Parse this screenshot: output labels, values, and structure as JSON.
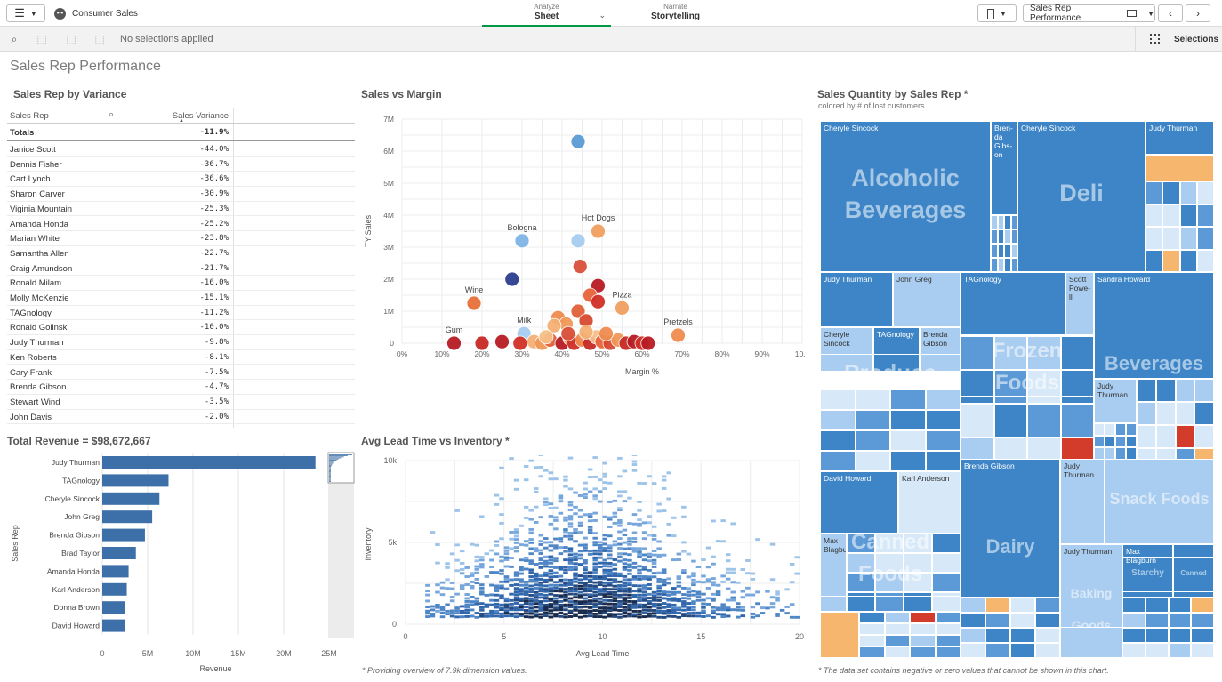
{
  "app": {
    "title": "Consumer Sales"
  },
  "nav": {
    "tabs": [
      {
        "sub": "Analyze",
        "label": "Sheet"
      },
      {
        "sub": "Narrate",
        "label": "Storytelling"
      }
    ],
    "sheet_selector": "Sales Rep Performance",
    "selections_label": "Selections"
  },
  "selbar": {
    "status": "No selections applied"
  },
  "sheet": {
    "title": "Sales Rep Performance"
  },
  "panels": {
    "variance": {
      "title": "Sales Rep by Variance",
      "col1": "Sales Rep",
      "col2": "Sales Variance",
      "totals_label": "Totals",
      "totals_value": "-11.9%",
      "rows": [
        {
          "name": "Janice Scott",
          "value": "-44.0%"
        },
        {
          "name": "Dennis Fisher",
          "value": "-36.7%"
        },
        {
          "name": "Cart Lynch",
          "value": "-36.6%"
        },
        {
          "name": "Sharon Carver",
          "value": "-30.9%"
        },
        {
          "name": "Viginia Mountain",
          "value": "-25.3%"
        },
        {
          "name": "Amanda Honda",
          "value": "-25.2%"
        },
        {
          "name": "Marian White",
          "value": "-23.8%"
        },
        {
          "name": "Samantha Allen",
          "value": "-22.7%"
        },
        {
          "name": "Craig Amundson",
          "value": "-21.7%"
        },
        {
          "name": "Ronald Milam",
          "value": "-16.0%"
        },
        {
          "name": "Molly McKenzie",
          "value": "-15.1%"
        },
        {
          "name": "TAGnology",
          "value": "-11.2%"
        },
        {
          "name": "Ronald Golinski",
          "value": "-10.0%"
        },
        {
          "name": "Judy Thurman",
          "value": "-9.8%"
        },
        {
          "name": "Ken Roberts",
          "value": "-8.1%"
        },
        {
          "name": "Cary Frank",
          "value": "-7.5%"
        },
        {
          "name": "Brenda Gibson",
          "value": "-4.7%"
        },
        {
          "name": "Stewart Wind",
          "value": "-3.5%"
        },
        {
          "name": "John Davis",
          "value": "-2.0%"
        }
      ]
    },
    "scatter": {
      "title": "Sales vs Margin",
      "xlabel": "Margin %",
      "ylabel": "TY Sales",
      "xticks": [
        "0%",
        "10%",
        "20%",
        "30%",
        "40%",
        "50%",
        "60%",
        "70%",
        "80%",
        "90%",
        "10..."
      ],
      "yticks": [
        "0",
        "1M",
        "2M",
        "3M",
        "4M",
        "5M",
        "6M",
        "7M"
      ],
      "labeled_points": [
        {
          "label": "Bologna",
          "x": 30,
          "y": 3.2
        },
        {
          "label": "Hot Dogs",
          "x": 49,
          "y": 3.5
        },
        {
          "label": "Wine",
          "x": 18,
          "y": 1.25
        },
        {
          "label": "Pizza",
          "x": 55,
          "y": 1.1
        },
        {
          "label": "Milk",
          "x": 30.5,
          "y": 0.3
        },
        {
          "label": "Gum",
          "x": 13,
          "y": 0
        },
        {
          "label": "Pretzels",
          "x": 69,
          "y": 0.25
        }
      ]
    },
    "treemap": {
      "title": "Sales Quantity by Sales Rep *",
      "subtitle": "colored by # of lost customers",
      "note": "* The data set contains negative or zero values that cannot be shown in this chart.",
      "categories": {
        "alcoholic": "Alcoholic Beverages",
        "deli": "Deli",
        "produce": "Produce",
        "frozen": "Frozen Foods",
        "beverages": "Beverages",
        "canned": "Canned Foods",
        "dairy": "Dairy",
        "snack": "Snack Foods",
        "baking": "Baking Goods",
        "starchy": "Starchy Foods",
        "canned_products": "Canned Products"
      },
      "reps": {
        "cs1": "Cheryle Sincock",
        "bg1": "Bren-da Gibs-on",
        "cs2": "Cheryle Sincock",
        "jt1": "Judy Thurman",
        "jt2": "Judy Thurman",
        "jg": "John Greg",
        "tag1": "TAGnology",
        "sp": "Scott Powe-ll",
        "sh": "Sandra Howard",
        "cs3": "Cheryle Sincock",
        "tag2": "TAGnology",
        "bg2": "Brenda Gibson",
        "jt3": "Judy Thurman",
        "dh": "David Howard",
        "ka": "Karl Anderson",
        "bg3": "Brenda Gibson",
        "jt4": "Judy Thurman",
        "mb1": "Max Blagburn",
        "jt5": "Judy Thurman",
        "mb2": "Max Blagburn"
      }
    },
    "revenue": {
      "title": "Total Revenue = $98,672,667",
      "xlabel": "Revenue",
      "ylabel": "Sales Rep",
      "xticks": [
        "0",
        "5M",
        "10M",
        "15M",
        "20M",
        "25M"
      ]
    },
    "leadtime": {
      "title": "Avg Lead Time vs Inventory *",
      "xlabel": "Avg Lead Time",
      "ylabel": "Inventory",
      "xticks": [
        "0",
        "5",
        "10",
        "15",
        "20"
      ],
      "yticks": [
        "0",
        "5k",
        "10k"
      ],
      "note": "* Providing overview of 7.9k dimension values."
    }
  },
  "chart_data": [
    {
      "type": "bar",
      "title": "Total Revenue = $98,672,667",
      "xlabel": "Revenue",
      "ylabel": "Sales Rep",
      "categories": [
        "Judy Thurman",
        "TAGnology",
        "Cheryle Sincock",
        "John Greg",
        "Brenda Gibson",
        "Brad Taylor",
        "Amanda Honda",
        "Karl Anderson",
        "Donna Brown",
        "David Howard"
      ],
      "values": [
        23.5,
        7.3,
        6.3,
        5.5,
        4.7,
        3.7,
        2.9,
        2.7,
        2.5,
        2.5
      ],
      "xlim": [
        0,
        25
      ],
      "unit": "M"
    },
    {
      "type": "scatter",
      "title": "Sales vs Margin",
      "xlabel": "Margin %",
      "ylabel": "TY Sales",
      "xlim": [
        0,
        100
      ],
      "ylim": [
        0,
        7
      ],
      "points": [
        {
          "x": 44,
          "y": 6.3,
          "c": "#5b9bd5"
        },
        {
          "x": 30,
          "y": 3.2,
          "c": "#7fb5e6"
        },
        {
          "x": 44,
          "y": 3.2,
          "c": "#a7cdf0"
        },
        {
          "x": 49,
          "y": 3.5,
          "c": "#f0a060"
        },
        {
          "x": 44.5,
          "y": 2.4,
          "c": "#d9503a"
        },
        {
          "x": 27.5,
          "y": 2.0,
          "c": "#2c3f8f"
        },
        {
          "x": 49,
          "y": 1.8,
          "c": "#b81c23"
        },
        {
          "x": 47,
          "y": 1.5,
          "c": "#e8643a"
        },
        {
          "x": 49,
          "y": 1.3,
          "c": "#d03028"
        },
        {
          "x": 55,
          "y": 1.1,
          "c": "#f0a060"
        },
        {
          "x": 18,
          "y": 1.25,
          "c": "#e8703a"
        },
        {
          "x": 39,
          "y": 0.8,
          "c": "#f08c50"
        },
        {
          "x": 44,
          "y": 1.0,
          "c": "#e06038"
        },
        {
          "x": 41,
          "y": 0.6,
          "c": "#f09858"
        },
        {
          "x": 38,
          "y": 0.55,
          "c": "#f4b074"
        },
        {
          "x": 46,
          "y": 0.7,
          "c": "#d84a32"
        },
        {
          "x": 30.5,
          "y": 0.3,
          "c": "#a7cdf0"
        },
        {
          "x": 69,
          "y": 0.25,
          "c": "#f08c50"
        },
        {
          "x": 13,
          "y": 0.0,
          "c": "#b81c23"
        },
        {
          "x": 20,
          "y": 0.0,
          "c": "#c82a25"
        },
        {
          "x": 25,
          "y": 0.05,
          "c": "#b81c23"
        },
        {
          "x": 29.5,
          "y": 0.0,
          "c": "#d03028"
        },
        {
          "x": 33,
          "y": 0.05,
          "c": "#f4b074"
        },
        {
          "x": 35,
          "y": 0.0,
          "c": "#f09858"
        },
        {
          "x": 37,
          "y": 0.1,
          "c": "#e06038"
        },
        {
          "x": 40,
          "y": 0.0,
          "c": "#b81c23"
        },
        {
          "x": 42,
          "y": 0.15,
          "c": "#f4b074"
        },
        {
          "x": 43,
          "y": 0.0,
          "c": "#d03028"
        },
        {
          "x": 45,
          "y": 0.1,
          "c": "#f08c50"
        },
        {
          "x": 47,
          "y": 0.0,
          "c": "#c82a25"
        },
        {
          "x": 48.5,
          "y": 0.2,
          "c": "#f6c08a"
        },
        {
          "x": 50,
          "y": 0.05,
          "c": "#e8643a"
        },
        {
          "x": 52,
          "y": 0.0,
          "c": "#d84a32"
        },
        {
          "x": 54,
          "y": 0.1,
          "c": "#f09858"
        },
        {
          "x": 56,
          "y": 0.0,
          "c": "#c82a25"
        },
        {
          "x": 58,
          "y": 0.05,
          "c": "#b81c23"
        },
        {
          "x": 60,
          "y": 0.0,
          "c": "#d03028"
        },
        {
          "x": 61.5,
          "y": 0.0,
          "c": "#b81c23"
        },
        {
          "x": 36,
          "y": 0.2,
          "c": "#f6c08a"
        },
        {
          "x": 46,
          "y": 0.35,
          "c": "#f4b074"
        },
        {
          "x": 51,
          "y": 0.3,
          "c": "#f08c50"
        },
        {
          "x": 41.5,
          "y": 0.3,
          "c": "#d9503a"
        }
      ]
    },
    {
      "type": "heatmap",
      "title": "Avg Lead Time vs Inventory *",
      "xlabel": "Avg Lead Time",
      "ylabel": "Inventory",
      "xlim": [
        0,
        20
      ],
      "ylim": [
        0,
        10000
      ]
    }
  ]
}
